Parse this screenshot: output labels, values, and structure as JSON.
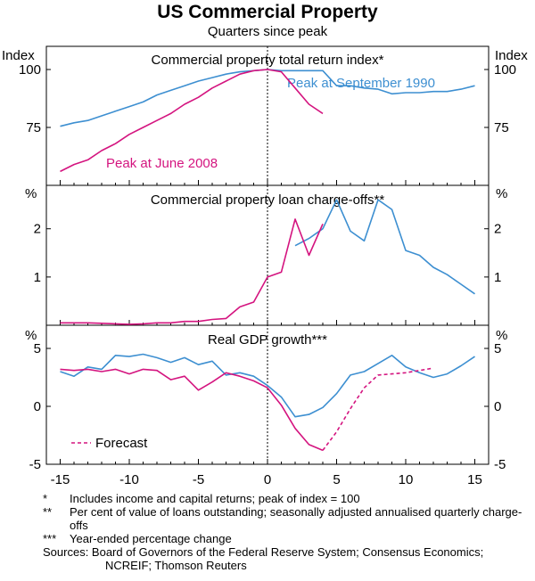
{
  "title": "US Commercial Property",
  "subtitle": "Quarters since peak",
  "colors": {
    "blue": "#3d8fd1",
    "magenta": "#d4147f"
  },
  "chart_data": [
    {
      "type": "line",
      "title": "Commercial property total return index*",
      "ylabel_left": "Index",
      "ylabel_right": "Index",
      "ylim": [
        50,
        110
      ],
      "yticks": [
        75,
        100
      ],
      "xlim": [
        -16,
        16
      ],
      "series": [
        {
          "name": "Peak at September 1990",
          "color": "#3d8fd1",
          "x": [
            -15,
            -14,
            -13,
            -12,
            -11,
            -10,
            -9,
            -8,
            -7,
            -6,
            -5,
            -4,
            -3,
            -2,
            -1,
            0,
            1,
            2,
            3,
            4,
            5,
            6,
            7,
            8,
            9,
            10,
            11,
            12,
            13,
            14,
            15
          ],
          "y": [
            75.5,
            77,
            78,
            80,
            82,
            84,
            86,
            89,
            91,
            93,
            95,
            96.5,
            98,
            99,
            99.5,
            100,
            99.5,
            99.5,
            99.5,
            99.5,
            93,
            93,
            92,
            91.5,
            89.5,
            90,
            90,
            90.5,
            90.5,
            91.5,
            93
          ]
        },
        {
          "name": "Peak at June 2008",
          "color": "#d4147f",
          "x": [
            -15,
            -14,
            -13,
            -12,
            -11,
            -10,
            -9,
            -8,
            -7,
            -6,
            -5,
            -4,
            -3,
            -2,
            -1,
            0,
            1,
            2,
            3,
            4
          ],
          "y": [
            56,
            59,
            61,
            65,
            68,
            72,
            75,
            78,
            81,
            85,
            88,
            92,
            95,
            98,
            99.5,
            100,
            99,
            92,
            85,
            81
          ]
        }
      ]
    },
    {
      "type": "line",
      "title": "Commercial property loan charge-offs**",
      "ylabel_left": "%",
      "ylabel_right": "%",
      "ylim": [
        0,
        2.9
      ],
      "yticks": [
        1,
        2
      ],
      "xlim": [
        -16,
        16
      ],
      "series": [
        {
          "name": "Peak at September 1990",
          "color": "#3d8fd1",
          "x": [
            2,
            3,
            4,
            5,
            6,
            7,
            8,
            9,
            10,
            11,
            12,
            13,
            14,
            15
          ],
          "y": [
            1.65,
            1.8,
            2.0,
            2.6,
            1.95,
            1.75,
            2.6,
            2.4,
            1.55,
            1.45,
            1.2,
            1.05,
            0.85,
            0.65
          ]
        },
        {
          "name": "Peak at June 2008",
          "color": "#d4147f",
          "x": [
            -15,
            -14,
            -13,
            -12,
            -11,
            -10,
            -9,
            -8,
            -7,
            -6,
            -5,
            -4,
            -3,
            -2,
            -1,
            0,
            1,
            2,
            3,
            4
          ],
          "y": [
            0.05,
            0.05,
            0.05,
            0.04,
            0.03,
            0.02,
            0.03,
            0.05,
            0.05,
            0.08,
            0.08,
            0.12,
            0.14,
            0.38,
            0.48,
            1.0,
            1.1,
            2.2,
            1.45,
            2.1
          ]
        }
      ]
    },
    {
      "type": "line",
      "title": "Real GDP growth***",
      "ylabel_left": "%",
      "ylabel_right": "%",
      "ylim": [
        -5,
        7
      ],
      "yticks": [
        -5,
        0,
        5
      ],
      "xlim": [
        -16,
        16
      ],
      "xticks": [
        -15,
        -10,
        -5,
        0,
        5,
        10,
        15
      ],
      "series": [
        {
          "name": "Peak at September 1990",
          "color": "#3d8fd1",
          "x": [
            -15,
            -14,
            -13,
            -12,
            -11,
            -10,
            -9,
            -8,
            -7,
            -6,
            -5,
            -4,
            -3,
            -2,
            -1,
            0,
            1,
            2,
            3,
            4,
            5,
            6,
            7,
            8,
            9,
            10,
            11,
            12,
            13,
            14,
            15
          ],
          "y": [
            3,
            2.6,
            3.4,
            3.2,
            4.4,
            4.3,
            4.5,
            4.2,
            3.8,
            4.2,
            3.6,
            3.9,
            2.7,
            2.9,
            2.6,
            1.8,
            0.8,
            -0.9,
            -0.7,
            -0.1,
            1.1,
            2.7,
            3.0,
            3.7,
            4.4,
            3.4,
            2.9,
            2.5,
            2.8,
            3.5,
            4.3
          ]
        },
        {
          "name": "Peak at June 2008",
          "color": "#d4147f",
          "x": [
            -15,
            -14,
            -13,
            -12,
            -11,
            -10,
            -9,
            -8,
            -7,
            -6,
            -5,
            -4,
            -3,
            -2,
            -1,
            0,
            1,
            2,
            3,
            4
          ],
          "y": [
            3.2,
            3.1,
            3.2,
            3.0,
            3.2,
            2.8,
            3.2,
            3.1,
            2.3,
            2.6,
            1.4,
            2.1,
            2.9,
            2.6,
            2.2,
            1.6,
            0.1,
            -1.9,
            -3.3,
            -3.8
          ]
        },
        {
          "name": "Forecast",
          "color": "#d4147f",
          "dashed": true,
          "x": [
            4,
            5,
            6,
            7,
            8,
            9,
            10,
            11,
            12
          ],
          "y": [
            -3.8,
            -2.2,
            -0.2,
            1.6,
            2.7,
            2.8,
            2.9,
            3.1,
            3.3
          ]
        }
      ]
    }
  ],
  "labels": {
    "peak_1990": "Peak at September 1990",
    "peak_2008": "Peak at June 2008",
    "forecast": "Forecast"
  },
  "notes": [
    {
      "marker": "*",
      "text": "Includes income and capital returns; peak of index = 100"
    },
    {
      "marker": "**",
      "text": "Per cent of value of loans outstanding; seasonally adjusted annualised quarterly charge-offs"
    },
    {
      "marker": "***",
      "text": "Year-ended percentage change"
    }
  ],
  "sources": "Sources: Board of Governors of the Federal Reserve System; Consensus Economics; NCREIF; Thomson Reuters"
}
